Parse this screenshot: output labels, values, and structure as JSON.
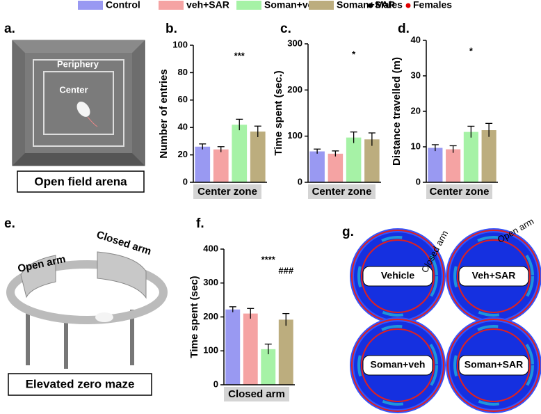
{
  "legend": [
    {
      "name": "Control",
      "color": "#9999f2"
    },
    {
      "name": "veh+SAR",
      "color": "#f5a3a3"
    },
    {
      "name": "Soman+veh",
      "color": "#a6f2a6"
    },
    {
      "name": "Soman+SAR",
      "color": "#bcad7e"
    }
  ],
  "markers": [
    {
      "name": "Males",
      "color": "#000000"
    },
    {
      "name": "Females",
      "color": "#e00000"
    }
  ],
  "panels": {
    "a": {
      "letter": "a.",
      "periphery": "Periphery",
      "center": "Center",
      "caption": "Open field arena"
    },
    "e": {
      "letter": "e.",
      "open_arm": "Open arm",
      "closed_arm": "Closed arm",
      "caption": "Elevated zero maze"
    },
    "g": {
      "letter": "g.",
      "closed_arm": "Closed arm",
      "open_arm": "Open arm",
      "labels": [
        "Vehicle",
        "Veh+SAR",
        "Soman+veh",
        "Soman+SAR"
      ]
    }
  },
  "chart_data": [
    {
      "type": "bar",
      "panel": "b.",
      "ylabel": "Number of entries",
      "xlabel": "Center zone",
      "values": [
        26,
        24,
        42,
        37
      ],
      "errors": [
        2,
        2,
        4,
        4
      ],
      "ylim": [
        0,
        100
      ],
      "yticks": [
        0,
        20,
        40,
        60,
        80,
        100
      ],
      "annotations": [
        {
          "text": "***",
          "index": 2
        }
      ]
    },
    {
      "type": "bar",
      "panel": "c.",
      "ylabel": "Time spent (sec.)",
      "xlabel": "Center zone",
      "values": [
        67,
        62,
        97,
        93
      ],
      "errors": [
        5,
        6,
        12,
        14
      ],
      "ylim": [
        0,
        300
      ],
      "yticks": [
        0,
        100,
        200,
        300
      ],
      "annotations": [
        {
          "text": "*",
          "index": 2
        }
      ]
    },
    {
      "type": "bar",
      "panel": "d.",
      "ylabel": "Distance travelled (m)",
      "xlabel": "Center zone",
      "values": [
        9.7,
        9.3,
        14.2,
        14.7
      ],
      "errors": [
        0.9,
        1,
        1.6,
        1.9
      ],
      "ylim": [
        0,
        40
      ],
      "yticks": [
        0,
        10,
        20,
        30,
        40
      ],
      "annotations": [
        {
          "text": "*",
          "index": 2
        }
      ]
    },
    {
      "type": "bar",
      "panel": "f.",
      "ylabel": "Time spent (sec)",
      "xlabel": "Closed arm",
      "values": [
        222,
        210,
        105,
        192
      ],
      "errors": [
        8,
        15,
        15,
        18
      ],
      "ylim": [
        0,
        400
      ],
      "yticks": [
        0,
        100,
        200,
        300,
        400
      ],
      "annotations": [
        {
          "text": "****",
          "index": 2
        },
        {
          "text": "###",
          "index": 3
        }
      ]
    }
  ]
}
